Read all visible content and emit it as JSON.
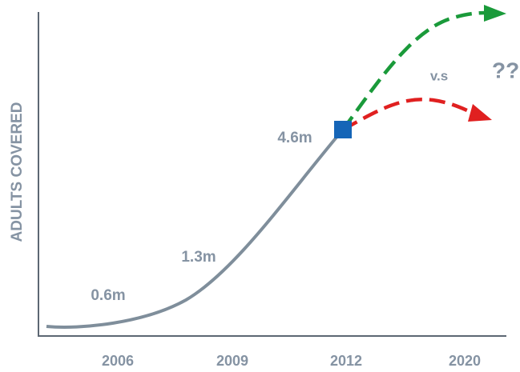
{
  "y_axis_label": "ADULTS COVERED",
  "x_labels": [
    "2006",
    "2009",
    "2012",
    "2020"
  ],
  "annotations": [
    "0.6m",
    "1.3m",
    "4.6m"
  ],
  "comparison": "v.s",
  "question": "??"
}
